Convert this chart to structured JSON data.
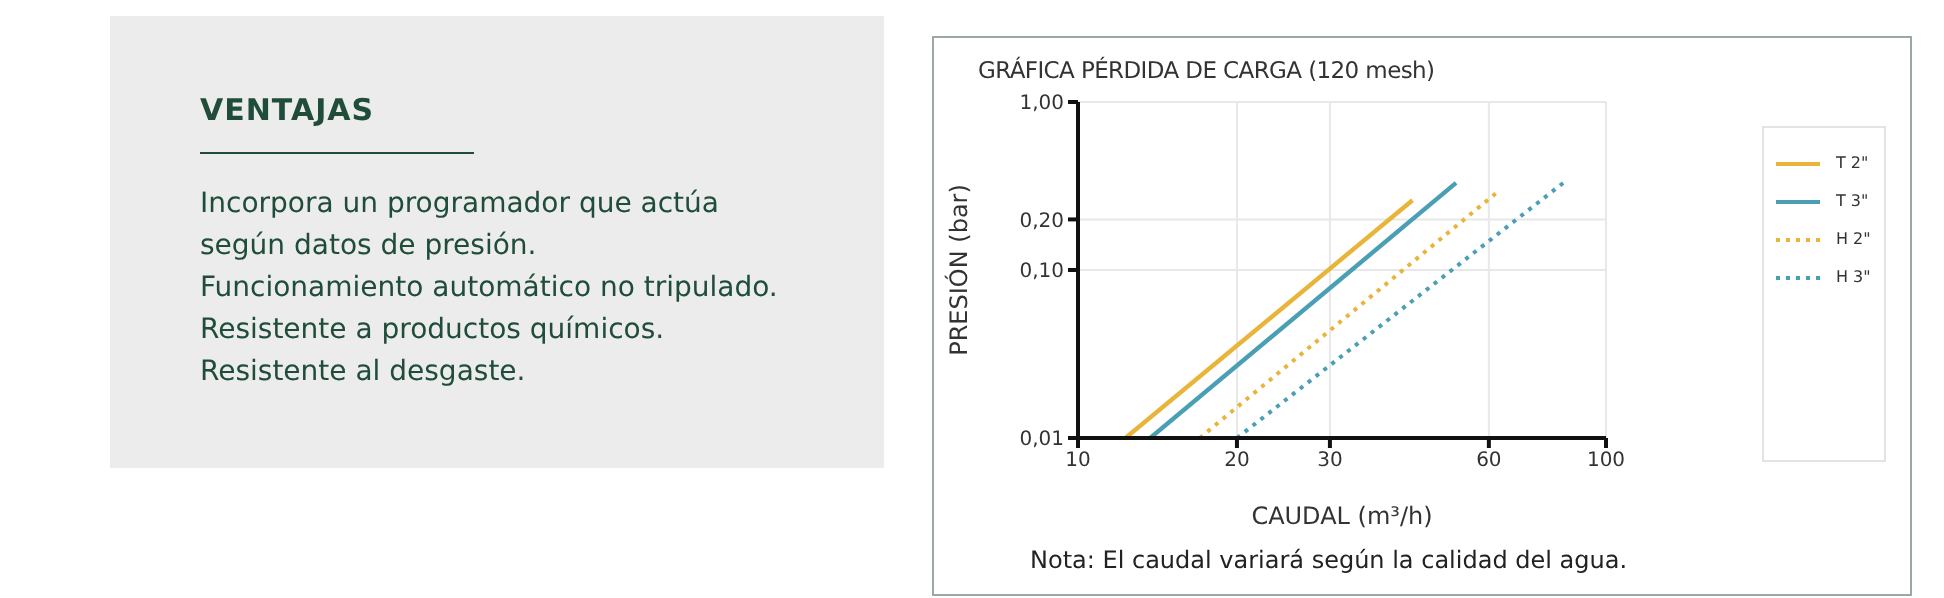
{
  "chart_data": [
    {
      "type": "other",
      "title": "VENTAJAS",
      "annotations": [
        "Incorpora un programador que actúa según datos de presión.",
        "Funcionamiento automático no tripulado.",
        "Resistente a productos químicos.",
        "Resistente al desgaste."
      ]
    },
    {
      "type": "line",
      "title": "GRÁFICA PÉRDIDA DE CARGA (120 mesh)",
      "xlabel": "CAUDAL (m³/h)",
      "ylabel": "PRESIÓN (bar)",
      "log": "xy",
      "grid": true,
      "legend": "right",
      "marker": "none",
      "xlim": [
        10,
        100
      ],
      "xticks": [
        10,
        20,
        30,
        60,
        100
      ],
      "ylim": [
        0.01,
        1
      ],
      "yticks": [
        {
          "value": 0.01,
          "label": "0,01"
        },
        {
          "value": 0.1,
          "label": "0,10"
        },
        {
          "value": 0.2,
          "label": "0,20"
        },
        {
          "value": 1,
          "label": "1,00"
        }
      ],
      "series": [
        {
          "name": "T 2\"",
          "color": "#e8b43a",
          "line_style": "solid",
          "x": [
            12.3,
            43
          ],
          "values": [
            0.01,
            0.26
          ]
        },
        {
          "name": "T 3\"",
          "color": "#4a9fb5",
          "line_style": "solid",
          "x": [
            13.7,
            52
          ],
          "values": [
            0.01,
            0.33
          ]
        },
        {
          "name": "H 2\"",
          "color": "#e8b43a",
          "line_style": "dotted",
          "x": [
            17,
            63
          ],
          "values": [
            0.01,
            0.3
          ]
        },
        {
          "name": "H 3\"",
          "color": "#4a9fb5",
          "line_style": "dotted",
          "x": [
            20,
            83
          ],
          "values": [
            0.01,
            0.33
          ]
        }
      ],
      "annotations": [
        "Nota: El caudal variará según la calidad del agua."
      ]
    }
  ]
}
